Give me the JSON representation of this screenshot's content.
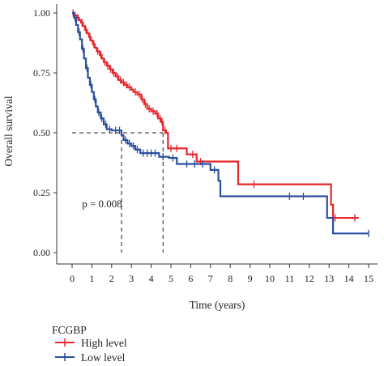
{
  "chart_data": {
    "type": "line",
    "subtype": "kaplan-meier",
    "xlabel": "Time (years)",
    "ylabel": "Overall survival",
    "xlim": [
      0,
      15
    ],
    "ylim": [
      0,
      1
    ],
    "xticks": [
      0,
      1,
      2,
      3,
      4,
      5,
      6,
      7,
      8,
      9,
      10,
      11,
      12,
      13,
      14,
      15
    ],
    "yticks": [
      {
        "value": 0.0,
        "label": "0.00"
      },
      {
        "value": 0.25,
        "label": "0.25"
      },
      {
        "value": 0.5,
        "label": "0.50"
      },
      {
        "value": 0.75,
        "label": "0.75"
      },
      {
        "value": 1.0,
        "label": "1.00"
      }
    ],
    "grid": false,
    "legend": {
      "title": "FCGBP",
      "placement": "bottom-left",
      "entries": [
        "High level",
        "Low level"
      ]
    },
    "annotation": {
      "text": "p = 0.008",
      "x": 0.5,
      "y": 0.19
    },
    "median_lines": {
      "y": 0.5,
      "x": [
        2.5,
        4.6
      ]
    },
    "series": [
      {
        "name": "High level",
        "color": "#e8262b",
        "steps": [
          [
            0,
            1.0
          ],
          [
            0.1,
            0.99
          ],
          [
            0.25,
            0.98
          ],
          [
            0.35,
            0.97
          ],
          [
            0.45,
            0.96
          ],
          [
            0.55,
            0.945
          ],
          [
            0.65,
            0.93
          ],
          [
            0.75,
            0.915
          ],
          [
            0.85,
            0.9
          ],
          [
            0.95,
            0.885
          ],
          [
            1.05,
            0.87
          ],
          [
            1.15,
            0.855
          ],
          [
            1.25,
            0.84
          ],
          [
            1.4,
            0.825
          ],
          [
            1.5,
            0.81
          ],
          [
            1.6,
            0.795
          ],
          [
            1.75,
            0.78
          ],
          [
            1.9,
            0.765
          ],
          [
            2.05,
            0.75
          ],
          [
            2.2,
            0.735
          ],
          [
            2.35,
            0.72
          ],
          [
            2.5,
            0.71
          ],
          [
            2.65,
            0.7
          ],
          [
            2.8,
            0.69
          ],
          [
            3.0,
            0.68
          ],
          [
            3.1,
            0.67
          ],
          [
            3.3,
            0.66
          ],
          [
            3.5,
            0.64
          ],
          [
            3.65,
            0.62
          ],
          [
            3.8,
            0.6
          ],
          [
            4.0,
            0.59
          ],
          [
            4.2,
            0.58
          ],
          [
            4.35,
            0.56
          ],
          [
            4.5,
            0.545
          ],
          [
            4.6,
            0.51
          ],
          [
            4.75,
            0.5
          ],
          [
            4.85,
            0.435
          ],
          [
            5.8,
            0.41
          ],
          [
            6.3,
            0.38
          ],
          [
            8.4,
            0.285
          ],
          [
            13.1,
            0.2
          ],
          [
            13.2,
            0.145
          ],
          [
            14.5,
            0.145
          ]
        ],
        "censors": [
          0.05,
          0.15,
          0.3,
          0.5,
          0.7,
          0.9,
          1.1,
          1.3,
          1.45,
          1.65,
          1.8,
          1.95,
          2.1,
          2.3,
          2.45,
          2.6,
          2.75,
          2.9,
          3.2,
          3.4,
          3.55,
          3.7,
          3.9,
          4.1,
          4.3,
          4.45,
          4.55,
          4.7,
          5.0,
          5.3,
          6.1,
          6.5,
          9.2,
          13.3,
          14.3
        ]
      },
      {
        "name": "Low level",
        "color": "#2b4f9e",
        "steps": [
          [
            0,
            1.0
          ],
          [
            0.1,
            0.98
          ],
          [
            0.2,
            0.95
          ],
          [
            0.3,
            0.92
          ],
          [
            0.4,
            0.89
          ],
          [
            0.5,
            0.85
          ],
          [
            0.6,
            0.81
          ],
          [
            0.7,
            0.77
          ],
          [
            0.8,
            0.73
          ],
          [
            0.9,
            0.7
          ],
          [
            1.0,
            0.67
          ],
          [
            1.1,
            0.64
          ],
          [
            1.2,
            0.61
          ],
          [
            1.3,
            0.585
          ],
          [
            1.45,
            0.56
          ],
          [
            1.6,
            0.535
          ],
          [
            1.75,
            0.515
          ],
          [
            2.0,
            0.51
          ],
          [
            2.5,
            0.49
          ],
          [
            2.6,
            0.47
          ],
          [
            2.8,
            0.455
          ],
          [
            3.0,
            0.445
          ],
          [
            3.2,
            0.43
          ],
          [
            3.45,
            0.415
          ],
          [
            4.4,
            0.4
          ],
          [
            4.9,
            0.395
          ],
          [
            5.3,
            0.37
          ],
          [
            7.0,
            0.345
          ],
          [
            7.4,
            0.3
          ],
          [
            7.5,
            0.235
          ],
          [
            12.9,
            0.145
          ],
          [
            13.2,
            0.08
          ],
          [
            15.0,
            0.08
          ]
        ],
        "censors": [
          0.15,
          0.35,
          0.55,
          0.75,
          0.95,
          1.15,
          1.35,
          1.5,
          1.7,
          1.9,
          2.2,
          2.4,
          2.7,
          2.9,
          3.1,
          3.3,
          3.6,
          3.8,
          4.0,
          4.2,
          4.6,
          5.1,
          5.8,
          6.2,
          6.6,
          7.2,
          11.0,
          11.7,
          15.0
        ]
      }
    ]
  }
}
